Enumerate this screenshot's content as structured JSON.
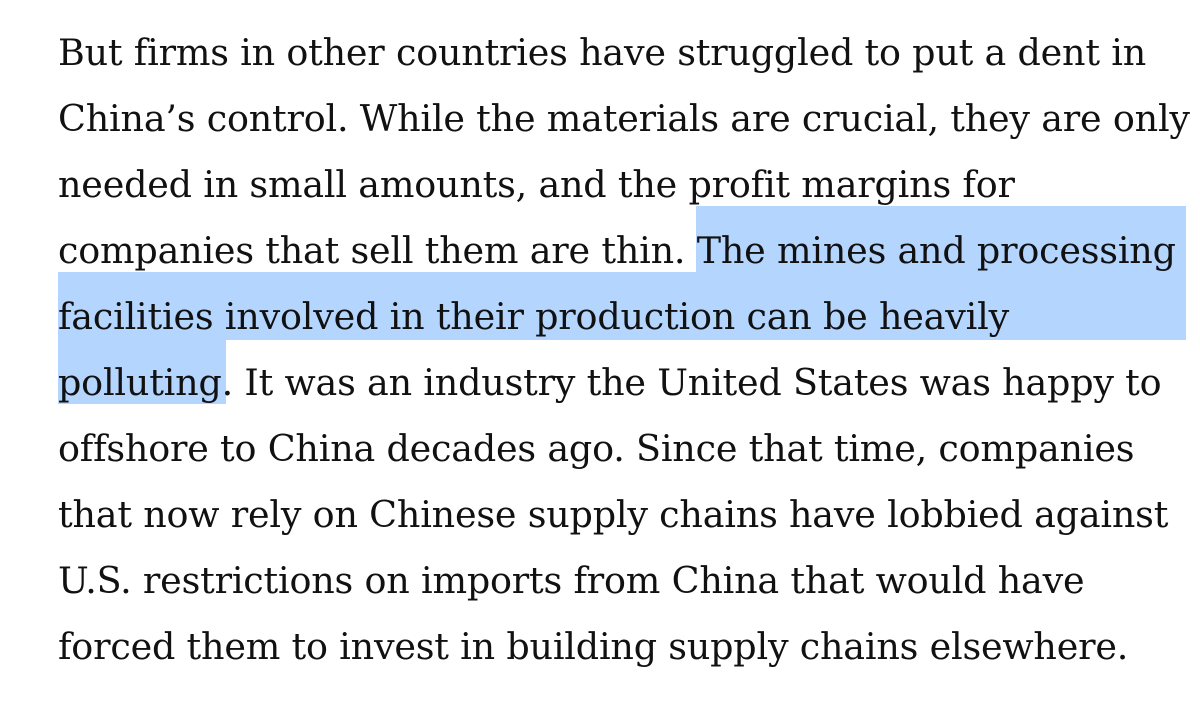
{
  "article": {
    "paragraph_lines": [
      "But firms in other countries have struggled to put a dent in",
      "China’s control. While the materials are crucial, they are only",
      "needed in small amounts, and the profit margins for",
      "companies that sell them are thin. The mines and processing",
      "facilities involved in their production can be heavily",
      "polluting. It was an industry the United States was happy to",
      "offshore to China decades ago. Since that time, companies",
      "that now rely on Chinese supply chains have lobbied against",
      "U.S. restrictions on imports from China that would have",
      "forced them to invest in building supply chains elsewhere."
    ],
    "line4_before": "companies that sell them are thin. ",
    "line4_selected": "The mines and processing",
    "line6_selected": "polluting",
    "line6_after": ". It was an industry the United States was happy to",
    "selected_text": "The mines and processing facilities involved in their production can be heavily polluting",
    "selection_color": "#b4d5fe"
  }
}
